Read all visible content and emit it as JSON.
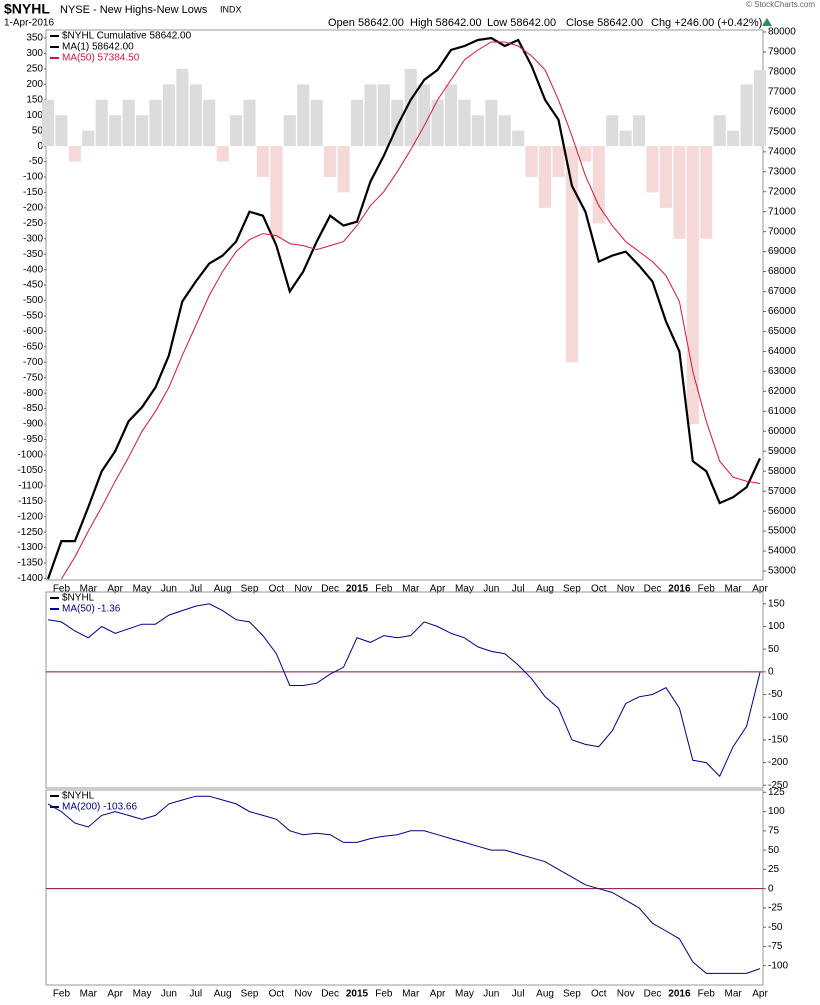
{
  "chart_data": [
    {
      "type": "line",
      "title": "$NYHL",
      "subtitle": "NYSE - New Highs-New Lows",
      "tag": "INDX",
      "date": "1-Apr-2016",
      "quote": [
        "Open 58642.00",
        "High 58642.00",
        "Low 58642.00",
        "Close 58642.00",
        "Chg +246.00 (+0.42%)"
      ],
      "credit": "© StockCharts.com",
      "legend_title": "$NYHL Cumulative 58642.00",
      "categories": [
        null,
        "Feb",
        null,
        "Mar",
        null,
        "Apr",
        null,
        "May",
        null,
        "Jun",
        null,
        "Jul",
        null,
        "Aug",
        null,
        "Sep",
        null,
        "Oct",
        null,
        "Nov",
        null,
        "Dec",
        null,
        "2015",
        null,
        "Feb",
        null,
        "Mar",
        null,
        "Apr",
        null,
        "May",
        null,
        "Jun",
        null,
        "Jul",
        null,
        "Aug",
        null,
        "Sep",
        null,
        "Oct",
        null,
        "Nov",
        null,
        "Dec",
        null,
        "2016",
        null,
        "Feb",
        null,
        "Mar",
        null,
        "Apr"
      ],
      "area": {
        "pos_color": "#dcdcdc",
        "neg_color": "#f6d8d8",
        "values": [
          150,
          100,
          -50,
          50,
          150,
          100,
          150,
          100,
          150,
          200,
          250,
          200,
          150,
          -50,
          100,
          150,
          -100,
          -300,
          100,
          200,
          150,
          -100,
          -150,
          150,
          200,
          200,
          150,
          250,
          200,
          150,
          200,
          150,
          100,
          150,
          100,
          50,
          -100,
          -200,
          -100,
          -700,
          -50,
          -250,
          100,
          50,
          100,
          -150,
          -200,
          -300,
          -900,
          -300,
          100,
          50,
          200,
          246
        ]
      },
      "series": [
        {
          "name": "MA(1) 58642.00",
          "color": "#000000",
          "width": 2.2,
          "axis": "y2",
          "values": [
            52600,
            54500,
            54500,
            56200,
            58000,
            59000,
            60500,
            61200,
            62200,
            63800,
            66500,
            67500,
            68400,
            68800,
            69500,
            71000,
            70800,
            69300,
            67000,
            68000,
            69500,
            70800,
            70300,
            70500,
            72500,
            73800,
            75300,
            76600,
            77600,
            78100,
            79100,
            79300,
            79600,
            79700,
            79300,
            79600,
            78300,
            76600,
            75600,
            72300,
            71000,
            68500,
            68800,
            69000,
            68300,
            67500,
            65500,
            64000,
            58500,
            58000,
            56400,
            56700,
            57200,
            58642
          ]
        },
        {
          "name": "MA(50) 57384.50",
          "color": "#dc143c",
          "width": 1,
          "axis": "y2",
          "values": [
            null,
            52600,
            53700,
            55000,
            56200,
            57500,
            58700,
            60000,
            61000,
            62200,
            63800,
            65300,
            66800,
            68000,
            69000,
            69600,
            69900,
            69800,
            69400,
            69300,
            69100,
            69300,
            69500,
            70300,
            71300,
            72000,
            73000,
            74100,
            75300,
            76600,
            77600,
            78600,
            79100,
            79500,
            79500,
            79300,
            78800,
            78100,
            76600,
            74800,
            72800,
            71300,
            70300,
            69500,
            69000,
            68500,
            67800,
            66500,
            63000,
            60500,
            58500,
            57700,
            57500,
            57384
          ]
        }
      ],
      "ylim": [
        -1405,
        376
      ],
      "yticks": [
        350,
        300,
        250,
        200,
        150,
        100,
        50,
        0,
        -50,
        -100,
        -150,
        -200,
        -250,
        -300,
        -350,
        -400,
        -450,
        -500,
        -550,
        -600,
        -650,
        -700,
        -750,
        -800,
        -850,
        -900,
        -950,
        -1000,
        -1050,
        -1100,
        -1150,
        -1200,
        -1250,
        -1300,
        -1350,
        -1400
      ],
      "y2lim": [
        52550,
        80100
      ],
      "y2ticks": [
        53000,
        54000,
        55000,
        56000,
        57000,
        58000,
        59000,
        60000,
        61000,
        62000,
        63000,
        64000,
        65000,
        66000,
        67000,
        68000,
        69000,
        70000,
        71000,
        72000,
        73000,
        74000,
        75000,
        76000,
        77000,
        78000,
        79000,
        80000
      ]
    },
    {
      "type": "line",
      "legend_title": "$NYHL",
      "zero_line_color": "#8b0a3a",
      "series": [
        {
          "name": "MA(50) -1.36",
          "color": "#00008b",
          "width": 1,
          "values": [
            115,
            110,
            90,
            75,
            100,
            85,
            95,
            105,
            105,
            125,
            135,
            145,
            150,
            135,
            115,
            110,
            80,
            40,
            -30,
            -30,
            -25,
            -5,
            10,
            75,
            65,
            80,
            75,
            80,
            110,
            100,
            85,
            75,
            55,
            45,
            40,
            15,
            -15,
            -55,
            -80,
            -150,
            -160,
            -165,
            -130,
            -70,
            -55,
            -50,
            -35,
            -80,
            -195,
            -200,
            -230,
            -165,
            -120,
            -1.36
          ]
        }
      ],
      "ylim": [
        -256,
        176
      ],
      "yticks": [
        150,
        100,
        50,
        0,
        -50,
        -100,
        -150,
        -200,
        -250
      ]
    },
    {
      "type": "line",
      "legend_title": "$NYHL",
      "zero_line_color": "#8b0a3a",
      "categories": [
        null,
        "Feb",
        null,
        "Mar",
        null,
        "Apr",
        null,
        "May",
        null,
        "Jun",
        null,
        "Jul",
        null,
        "Aug",
        null,
        "Sep",
        null,
        "Oct",
        null,
        "Nov",
        null,
        "Dec",
        null,
        "2015",
        null,
        "Feb",
        null,
        "Mar",
        null,
        "Apr",
        null,
        "May",
        null,
        "Jun",
        null,
        "Jul",
        null,
        "Aug",
        null,
        "Sep",
        null,
        "Oct",
        null,
        "Nov",
        null,
        "Dec",
        null,
        "2016",
        null,
        "Feb",
        null,
        "Mar",
        null,
        "Apr"
      ],
      "series": [
        {
          "name": "MA(200) -103.66",
          "color": "#00008b",
          "width": 1,
          "values": [
            110,
            100,
            85,
            80,
            95,
            100,
            95,
            90,
            95,
            110,
            115,
            120,
            120,
            115,
            110,
            100,
            95,
            90,
            75,
            70,
            72,
            70,
            60,
            60,
            65,
            68,
            70,
            75,
            75,
            70,
            65,
            60,
            55,
            50,
            50,
            45,
            40,
            35,
            25,
            15,
            5,
            0,
            -5,
            -15,
            -25,
            -45,
            -55,
            -65,
            -95,
            -110,
            -110,
            -110,
            -110,
            -103.66
          ]
        }
      ],
      "ylim": [
        -125,
        128
      ],
      "yticks": [
        125,
        100,
        75,
        50,
        25,
        0,
        -25,
        -50,
        -75,
        -100
      ]
    }
  ]
}
